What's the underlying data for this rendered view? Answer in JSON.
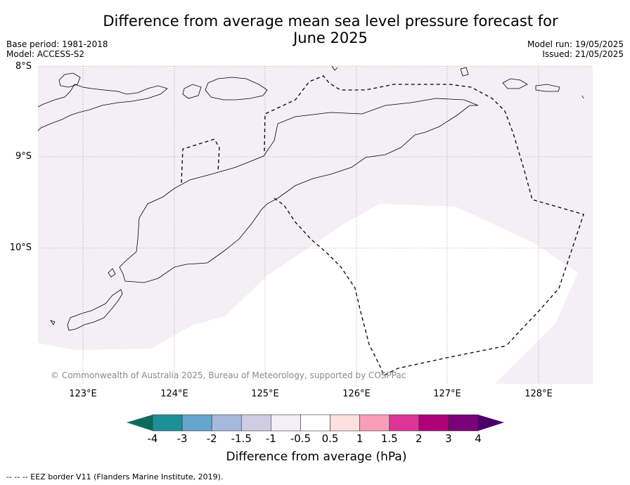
{
  "title": {
    "line1": "Difference from average mean sea level pressure forecast for",
    "line2": "June 2025"
  },
  "meta_left": {
    "base_period": "Base period: 1981-2018",
    "model": "Model: ACCESS-S2"
  },
  "meta_right": {
    "model_run": "Model run: 19/05/2025",
    "issued": "Issued: 21/05/2025"
  },
  "lat_labels": [
    "8°S",
    "9°S",
    "10°S"
  ],
  "lon_labels": [
    "123°E",
    "124°E",
    "125°E",
    "126°E",
    "127°E",
    "128°E"
  ],
  "copyright": "© Commonwealth of Australia 2025, Bureau of Meteorology, supported by COSPPac",
  "colorbar": {
    "label": "Difference from average (hPa)",
    "ticks": [
      "-4",
      "-3",
      "-2",
      "-1.5",
      "-1",
      "-0.5",
      "0.5",
      "1",
      "1.5",
      "2",
      "3",
      "4"
    ],
    "colors": [
      "#0d6b5e",
      "#1d9097",
      "#64a6cd",
      "#a6b8db",
      "#d0cde3",
      "#f4eef7",
      "#ffffff",
      "#fde0dd",
      "#f99eba",
      "#dd3497",
      "#ae0179",
      "#7a0177",
      "#49006a"
    ]
  },
  "map": {
    "shading": {
      "minus_0_5_to_minus_1": "#f4eef7",
      "minus_0_5_to_0_5": "#ffffff"
    }
  },
  "footer": "--  --  -- EEZ border V11 (Flanders Marine Institute, 2019)."
}
